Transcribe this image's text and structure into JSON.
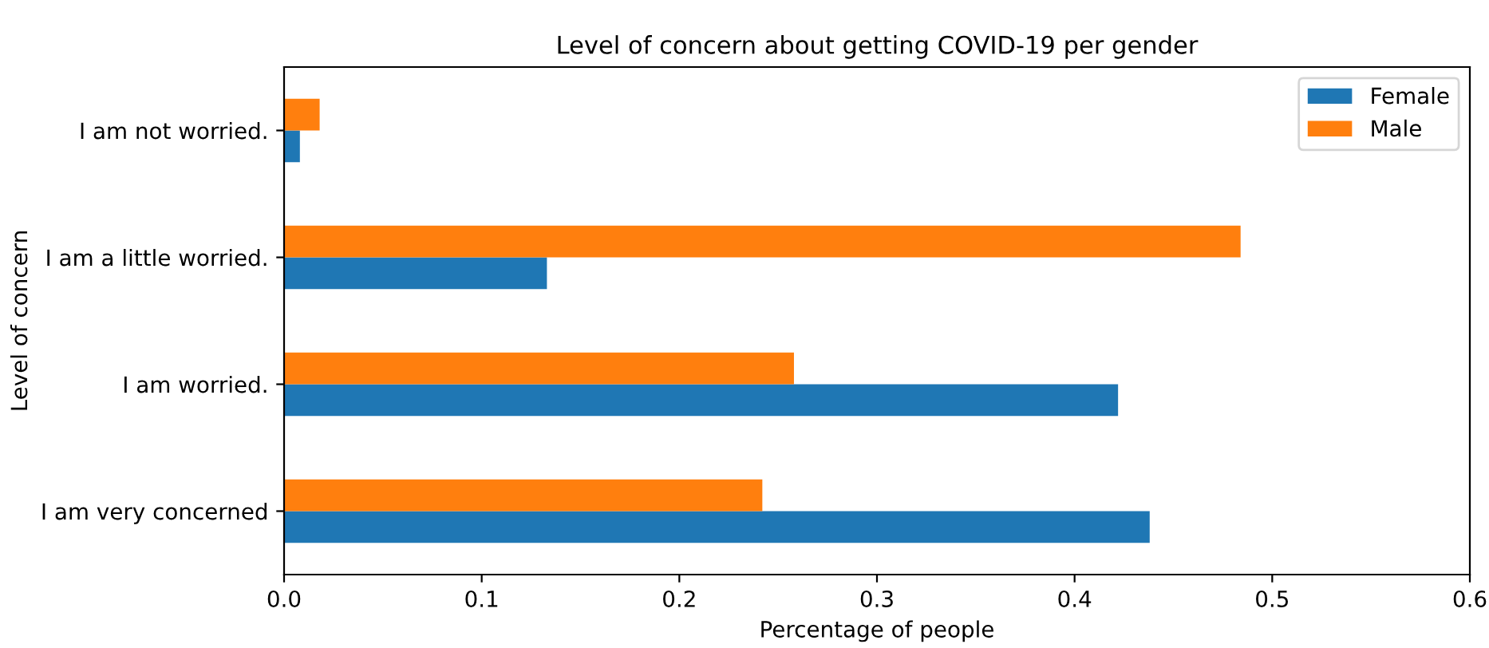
{
  "chart_data": {
    "type": "bar",
    "orientation": "horizontal",
    "title": "Level of concern about getting COVID-19 per gender",
    "xlabel": "Percentage of people",
    "ylabel": "Level of concern",
    "categories": [
      "I am not worried.",
      "I am a little worried.",
      "I am worried.",
      "I am very concerned"
    ],
    "series": [
      {
        "name": "Female",
        "color": "#1f77b4",
        "values": [
          0.008,
          0.133,
          0.422,
          0.438
        ]
      },
      {
        "name": "Male",
        "color": "#ff7f0e",
        "values": [
          0.018,
          0.484,
          0.258,
          0.242
        ]
      }
    ],
    "xlim": [
      0,
      0.6
    ],
    "xticks": [
      {
        "value": 0,
        "label": "0.0"
      },
      0.1,
      0.2,
      0.3,
      0.4,
      0.5,
      0.6
    ],
    "grid": false,
    "legend": "top right"
  }
}
